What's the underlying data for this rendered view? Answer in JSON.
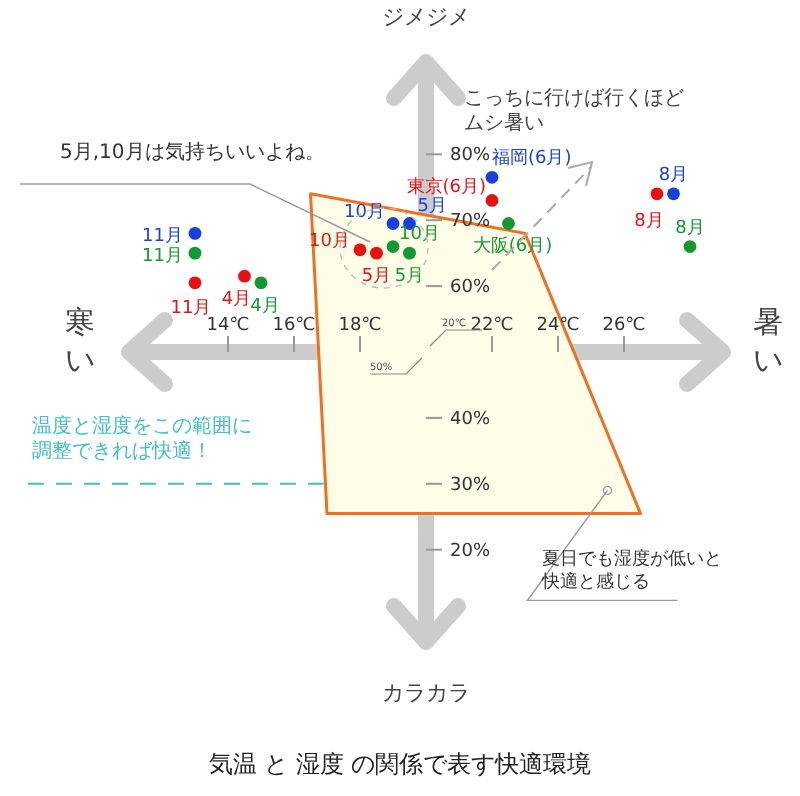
{
  "chart_data": {
    "type": "scatter",
    "title": "気温 と 湿度 の関係で表す快適環境",
    "xlim": [
      11,
      29
    ],
    "ylim": [
      6,
      94
    ],
    "xticks": [
      {
        "value": 14,
        "label": "14℃"
      },
      {
        "value": 16,
        "label": "16℃"
      },
      {
        "value": 18,
        "label": "18℃"
      },
      {
        "value": 22,
        "label": "22℃"
      },
      {
        "value": 24,
        "label": "24℃"
      },
      {
        "value": 26,
        "label": "26℃"
      }
    ],
    "yticks": [
      {
        "value": 20,
        "label": "20%"
      },
      {
        "value": 30,
        "label": "30%"
      },
      {
        "value": 40,
        "label": "40%"
      },
      {
        "value": 60,
        "label": "60%"
      },
      {
        "value": 70,
        "label": "70%"
      },
      {
        "value": 80,
        "label": "80%"
      }
    ],
    "series": [
      {
        "type": "area",
        "color": "#f07020",
        "x": [
          16.5,
          23,
          26.5,
          17
        ],
        "values": [
          74,
          68,
          25.5,
          25.5
        ]
      },
      {
        "marker": "circle",
        "color": "#1a3fe0",
        "x": [
          13,
          19,
          19.5,
          22,
          27.5
        ],
        "values": [
          68,
          69.5,
          69.5,
          76.5,
          74
        ]
      },
      {
        "marker": "circle",
        "color": "#e81010",
        "x": [
          13,
          14.5,
          18,
          18.5,
          22,
          27
        ],
        "values": [
          60.5,
          61.5,
          65.5,
          65,
          73,
          74
        ]
      },
      {
        "marker": "circle",
        "color": "#109a30",
        "x": [
          13,
          15,
          19,
          19.5,
          22.5,
          28
        ],
        "values": [
          65,
          60.5,
          66,
          65,
          69.5,
          66
        ]
      }
    ],
    "ref_lines": [
      {
        "axis": "y",
        "value": 30,
        "label": "温度と湿度をこの範囲に調整できれば快適！",
        "color": "#40c0c0",
        "line_style": "dashed"
      }
    ],
    "annotations": [
      {
        "text": "11月",
        "x": 13,
        "y": 68
      },
      {
        "text": "11月",
        "x": 13,
        "y": 65
      },
      {
        "text": "11月",
        "x": 13,
        "y": 60.5
      },
      {
        "text": "4月",
        "x": 14.5,
        "y": 61.5
      },
      {
        "text": "4月",
        "x": 15,
        "y": 60.5
      },
      {
        "text": "10月",
        "x": 19,
        "y": 69.5
      },
      {
        "text": "5月",
        "x": 19.5,
        "y": 69.5
      },
      {
        "text": "10月",
        "x": 18,
        "y": 65.5
      },
      {
        "text": "5月",
        "x": 18.5,
        "y": 65
      },
      {
        "text": "10月",
        "x": 19,
        "y": 66
      },
      {
        "text": "5月",
        "x": 19.5,
        "y": 65
      },
      {
        "text": "福岡(6月)",
        "x": 22,
        "y": 76.5
      },
      {
        "text": "東京(6月)",
        "x": 22,
        "y": 73
      },
      {
        "text": "大阪(6月)",
        "x": 22.5,
        "y": 69.5
      },
      {
        "text": "8月",
        "x": 27.5,
        "y": 74
      },
      {
        "text": "8月",
        "x": 27,
        "y": 74
      },
      {
        "text": "8月",
        "x": 28,
        "y": 66
      },
      "ジメジメ",
      "カラカラ",
      "寒い",
      "暑い",
      "こっちに行けば行くほどムシ暑い",
      "5月,10月は気持ちいいよね。",
      {
        "text": "夏日でも湿度が低いと快適と感じる",
        "x": 25.5,
        "y": 29
      },
      "20℃",
      "50%"
    ]
  }
}
